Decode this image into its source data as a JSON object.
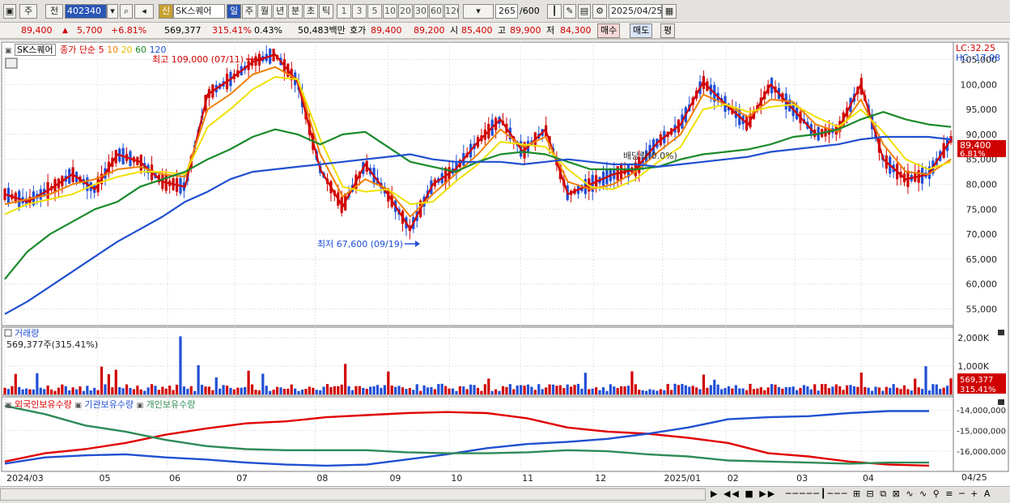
{
  "toolbar": {
    "market": "주",
    "scope": "전",
    "code": "402340",
    "badge": "신",
    "stock_name": "SK스퀘어",
    "periods": [
      "일",
      "주",
      "월",
      "년",
      "분",
      "초",
      "틱"
    ],
    "active_period": "일",
    "minute_steps": [
      "1",
      "3",
      "5",
      "10",
      "20",
      "30",
      "60",
      "120"
    ],
    "count": "265",
    "count_max": "/600",
    "date": "2025/04/25"
  },
  "quote": {
    "price": "89,400",
    "change": "5,700",
    "change_pct": "+6.81%",
    "volume": "569,377",
    "volume_ratio": "315.41%",
    "turnover": "0.43%",
    "amount": "50,483백만",
    "bid_label": "호가",
    "ask": "89,400",
    "bid": "89,200",
    "open_label": "시",
    "open": "85,400",
    "high_label": "고",
    "high": "89,900",
    "low_label": "저",
    "low": "84,300",
    "buy_label": "매수",
    "sell_label": "매도",
    "eval_label": "평"
  },
  "legend": {
    "stock": "SK스퀘어",
    "ma_label": "종가 단순",
    "ma_periods": [
      "5",
      "10",
      "20",
      "60",
      "120"
    ]
  },
  "annotations": {
    "high_marker": "최고 109,000 (07/11)",
    "low_marker": "최저 67,600 (09/19)",
    "dividend": "배당락(0.0%)"
  },
  "right_axis": {
    "lc": "LC:32.25",
    "hc": "HC:-17.98",
    "price_ticks": [
      "105,000",
      "100,000",
      "95,000",
      "90,000",
      "85,000",
      "80,000",
      "75,000",
      "70,000",
      "65,000",
      "60,000",
      "55,000"
    ],
    "current_price": "89,400",
    "current_pct": "6.81%",
    "volume_ticks": [
      "2,000K",
      "1,000K"
    ],
    "current_volume": "569,377",
    "current_volume_pct": "315.41%",
    "holdings_ticks": [
      "-14,000,000",
      "-15,000,000",
      "-16,000,000"
    ]
  },
  "volume_panel": {
    "title": "거래량",
    "summary": "569,377주(315.41%)"
  },
  "holdings_panel": {
    "series": [
      "외국인보유수량",
      "기관보유수량",
      "개인보유수량"
    ]
  },
  "x_axis": {
    "labels": [
      "2024/03",
      "05",
      "06",
      "07",
      "08",
      "09",
      "10",
      "11",
      "12",
      "2025/01",
      "02",
      "03",
      "04"
    ],
    "last_label": "04/25"
  },
  "colors": {
    "up": "#d00000",
    "down": "#1f4fd6",
    "ma5": "#d00000",
    "ma10": "#f08000",
    "ma20": "#f0e000",
    "ma60": "#1a8a2a",
    "ma120": "#2050d0",
    "foreign": "#e00000",
    "institution": "#2050d0",
    "individual": "#2e8b57"
  },
  "chart_data": {
    "type": "line",
    "title": "SK스퀘어",
    "series": [
      {
        "name": "5",
        "values": [
          78000,
          76500,
          79000,
          82000,
          79000,
          86000,
          84500,
          80500,
          79500,
          98000,
          101000,
          104500,
          106000,
          100500,
          83000,
          75500,
          84000,
          78000,
          71000,
          80000,
          83000,
          88500,
          93000,
          86500,
          91000,
          78000,
          80000,
          82000,
          83000,
          88500,
          92000,
          100500,
          96000,
          92000,
          100000,
          95000,
          90000,
          91000,
          100000,
          85000,
          81000,
          82000,
          89000
        ]
      },
      {
        "name": "10",
        "values": [
          76000,
          77000,
          78000,
          80000,
          81000,
          83000,
          83500,
          82000,
          81500,
          95000,
          98000,
          102000,
          103500,
          101000,
          86000,
          77500,
          81000,
          79000,
          73500,
          78000,
          82000,
          86000,
          91000,
          87500,
          89500,
          80500,
          79000,
          80000,
          82500,
          86500,
          90000,
          98000,
          96000,
          93500,
          97000,
          96500,
          92000,
          90500,
          97000,
          88000,
          82500,
          82000,
          85000
        ]
      },
      {
        "name": "20",
        "values": [
          74000,
          76000,
          77000,
          78000,
          80000,
          81500,
          82500,
          82500,
          82000,
          91500,
          95000,
          99000,
          101500,
          101000,
          89000,
          79500,
          78500,
          79000,
          76000,
          76500,
          80500,
          84000,
          88500,
          88000,
          87500,
          83000,
          79500,
          79000,
          81000,
          84500,
          87500,
          95000,
          96000,
          94500,
          95500,
          96000,
          93500,
          91500,
          95000,
          90500,
          85000,
          83000,
          84500
        ]
      },
      {
        "name": "60",
        "values": [
          61000,
          66500,
          70000,
          72500,
          75000,
          76500,
          79500,
          81000,
          82500,
          85000,
          87000,
          89500,
          91000,
          90000,
          88000,
          90000,
          90500,
          87500,
          84500,
          83500,
          82500,
          84500,
          86000,
          86500,
          86000,
          84500,
          83000,
          83000,
          83000,
          83500,
          85000,
          86000,
          86500,
          87000,
          88000,
          89500,
          90000,
          91000,
          93000,
          94500,
          93000,
          92000,
          91500
        ]
      },
      {
        "name": "120",
        "values": [
          54000,
          56500,
          59500,
          62500,
          65500,
          68500,
          71000,
          73500,
          76500,
          78500,
          81000,
          82500,
          83000,
          83500,
          84000,
          84500,
          85000,
          85500,
          86000,
          85000,
          84500,
          84500,
          84500,
          84000,
          84500,
          85000,
          84500,
          84000,
          84000,
          83500,
          84000,
          84500,
          85000,
          85500,
          86500,
          87000,
          87500,
          88000,
          89000,
          89500,
          89500,
          89500,
          89000
        ]
      }
    ],
    "annotations": {
      "high": {
        "date": "07/11",
        "value": 109000
      },
      "low": {
        "date": "09/19",
        "value": 67600
      }
    },
    "current_price": 89400,
    "xlabel": "",
    "ylabel": "",
    "ylim": [
      52000,
      108000
    ],
    "x_tick_labels": [
      "2024/03",
      "05",
      "06",
      "07",
      "08",
      "09",
      "10",
      "11",
      "12",
      "2025/01",
      "02",
      "03",
      "04"
    ],
    "grid": true,
    "legend": "top-left",
    "volume": {
      "unit": "K",
      "ylim": [
        0,
        2200
      ],
      "last": 569.377
    },
    "holdings": {
      "ylim": [
        -16900000,
        -13600000
      ],
      "series": [
        {
          "name": "외국인보유수량",
          "values": [
            -16500000,
            -16100000,
            -15900000,
            -15600000,
            -15200000,
            -14900000,
            -14650000,
            -14550000,
            -14350000,
            -14250000,
            -14150000,
            -14100000,
            -14150000,
            -14400000,
            -14850000,
            -15050000,
            -15150000,
            -15350000,
            -15600000,
            -16100000,
            -16250000,
            -16500000,
            -16650000,
            -16700000
          ]
        },
        {
          "name": "기관보유수량",
          "values": [
            -16600000,
            -16300000,
            -16200000,
            -16150000,
            -16300000,
            -16400000,
            -16550000,
            -16650000,
            -16700000,
            -16650000,
            -16400000,
            -16150000,
            -15850000,
            -15650000,
            -15550000,
            -15400000,
            -15150000,
            -14850000,
            -14450000,
            -14350000,
            -14300000,
            -14150000,
            -14050000,
            -14050000
          ]
        },
        {
          "name": "개인보유수량",
          "values": [
            -13800000,
            -14200000,
            -14750000,
            -15050000,
            -15450000,
            -15750000,
            -15900000,
            -15950000,
            -15950000,
            -15950000,
            -16050000,
            -16100000,
            -16100000,
            -16050000,
            -15950000,
            -16000000,
            -16150000,
            -16250000,
            -16450000,
            -16500000,
            -16550000,
            -16600000,
            -16550000,
            -16550000
          ]
        }
      ]
    }
  }
}
